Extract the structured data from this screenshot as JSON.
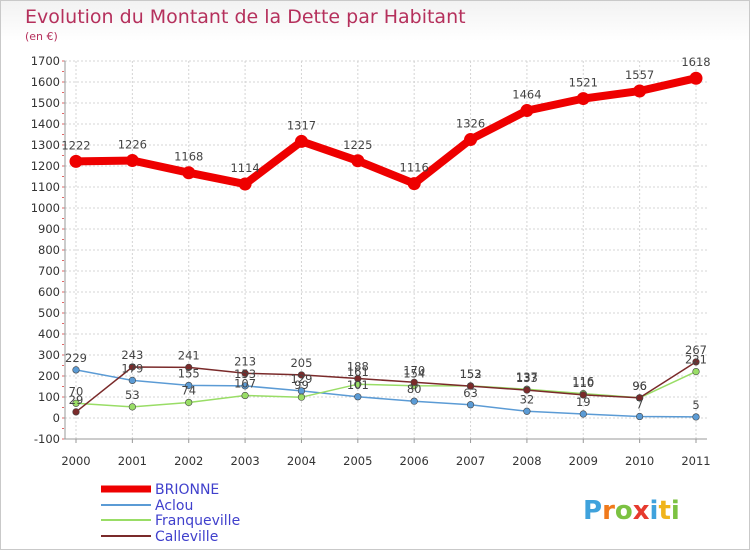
{
  "chart_data": {
    "type": "line",
    "title": "Evolution du Montant de la Dette par Habitant",
    "subtitle": "(en €)",
    "xlabel": "",
    "ylabel": "",
    "x": [
      "2000",
      "2001",
      "2002",
      "2003",
      "2004",
      "2005",
      "2006",
      "2007",
      "2008",
      "2009",
      "2010",
      "2011"
    ],
    "ylim": [
      -100,
      1700
    ],
    "yticks": [
      -100,
      0,
      100,
      200,
      300,
      400,
      500,
      600,
      700,
      800,
      900,
      1000,
      1100,
      1200,
      1300,
      1400,
      1500,
      1600,
      1700
    ],
    "grid": true,
    "legend_position": "bottom-left",
    "series": [
      {
        "name": "BRIONNE",
        "color": "#ee0000",
        "values": [
          1222,
          1226,
          1168,
          1114,
          1317,
          1225,
          1116,
          1326,
          1464,
          1521,
          1557,
          1618
        ]
      },
      {
        "name": "Aclou",
        "color": "#5b9bd5",
        "values": [
          229,
          179,
          155,
          153,
          129,
          101,
          80,
          63,
          32,
          19,
          7,
          5
        ]
      },
      {
        "name": "Franqueville",
        "color": "#99dd66",
        "values": [
          70,
          53,
          74,
          107,
          99,
          161,
          154,
          153,
          137,
          116,
          96,
          221
        ]
      },
      {
        "name": "Calleville",
        "color": "#7a2a2a",
        "values": [
          29,
          243,
          241,
          213,
          205,
          188,
          170,
          152,
          133,
          110,
          96,
          267
        ]
      }
    ]
  },
  "branding": {
    "logo_letters": [
      "P",
      "r",
      "o",
      "x",
      "i",
      "t",
      "i"
    ],
    "logo_colors": [
      "#3fa2dc",
      "#f07a1c",
      "#7cc242",
      "#e63a2e",
      "#3fa2dc",
      "#f0b41c",
      "#7cc242"
    ]
  }
}
